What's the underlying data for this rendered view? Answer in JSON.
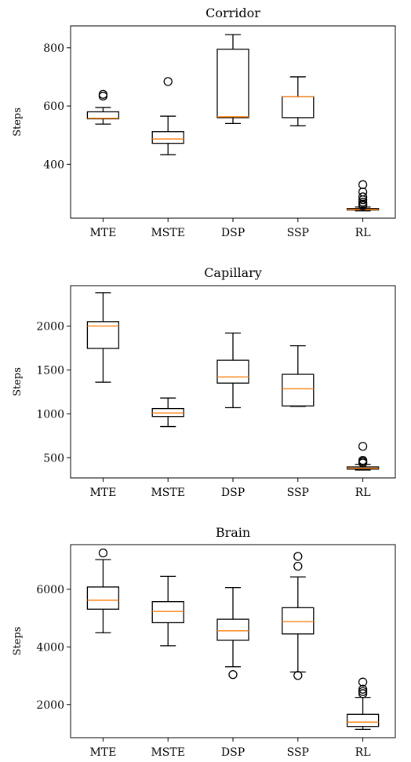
{
  "chart_data": [
    {
      "type": "boxplot",
      "title": "Corridor",
      "ylabel": "Steps",
      "xlabel": "",
      "categories": [
        "MTE",
        "MSTE",
        "DSP",
        "SSP",
        "RL"
      ],
      "ylim": [
        215,
        875
      ],
      "yticks": [
        400,
        600,
        800
      ],
      "boxes": [
        {
          "whislo": 538,
          "q1": 556,
          "med": 558,
          "q3": 580,
          "whishi": 595,
          "fliers": [
            634,
            640
          ]
        },
        {
          "whislo": 433,
          "q1": 472,
          "med": 487,
          "q3": 512,
          "whishi": 565,
          "fliers": [
            684
          ]
        },
        {
          "whislo": 540,
          "q1": 560,
          "med": 563,
          "q3": 795,
          "whishi": 845,
          "fliers": []
        },
        {
          "whislo": 532,
          "q1": 560,
          "med": 632,
          "q3": 632,
          "whishi": 700,
          "fliers": []
        },
        {
          "whislo": 240,
          "q1": 243,
          "med": 245,
          "q3": 248,
          "whishi": 253,
          "fliers": [
            258,
            263,
            270,
            278,
            288,
            305,
            330
          ]
        }
      ],
      "grid": false,
      "colors": {
        "box": "#000000",
        "median": "#ff7f0e"
      }
    },
    {
      "type": "boxplot",
      "title": "Capillary",
      "ylabel": "Steps",
      "xlabel": "",
      "categories": [
        "MTE",
        "MSTE",
        "DSP",
        "SSP",
        "RL"
      ],
      "ylim": [
        270,
        2460
      ],
      "yticks": [
        500,
        1000,
        1500,
        2000
      ],
      "boxes": [
        {
          "whislo": 1360,
          "q1": 1745,
          "med": 2000,
          "q3": 2050,
          "whishi": 2380,
          "fliers": []
        },
        {
          "whislo": 855,
          "q1": 970,
          "med": 1010,
          "q3": 1060,
          "whishi": 1180,
          "fliers": []
        },
        {
          "whislo": 1070,
          "q1": 1350,
          "med": 1420,
          "q3": 1610,
          "whishi": 1920,
          "fliers": []
        },
        {
          "whislo": 1085,
          "q1": 1090,
          "med": 1285,
          "q3": 1450,
          "whishi": 1775,
          "fliers": []
        },
        {
          "whislo": 360,
          "q1": 370,
          "med": 380,
          "q3": 395,
          "whishi": 425,
          "fliers": [
            440,
            455,
            470,
            630
          ]
        }
      ],
      "grid": false,
      "colors": {
        "box": "#000000",
        "median": "#ff7f0e"
      }
    },
    {
      "type": "boxplot",
      "title": "Brain",
      "ylabel": "Steps",
      "xlabel": "",
      "categories": [
        "MTE",
        "MSTE",
        "DSP",
        "SSP",
        "RL"
      ],
      "ylim": [
        850,
        7550
      ],
      "yticks": [
        2000,
        4000,
        6000
      ],
      "boxes": [
        {
          "whislo": 4490,
          "q1": 5310,
          "med": 5620,
          "q3": 6080,
          "whishi": 7030,
          "fliers": [
            7260
          ]
        },
        {
          "whislo": 4040,
          "q1": 4840,
          "med": 5230,
          "q3": 5570,
          "whishi": 6450,
          "fliers": []
        },
        {
          "whislo": 3310,
          "q1": 4230,
          "med": 4560,
          "q3": 4960,
          "whishi": 6060,
          "fliers": [
            3040
          ]
        },
        {
          "whislo": 3130,
          "q1": 4450,
          "med": 4880,
          "q3": 5360,
          "whishi": 6430,
          "fliers": [
            3010,
            6800,
            7140
          ]
        },
        {
          "whislo": 1140,
          "q1": 1240,
          "med": 1390,
          "q3": 1660,
          "whishi": 2250,
          "fliers": [
            2380,
            2450,
            2530,
            2780
          ]
        }
      ],
      "grid": false,
      "colors": {
        "box": "#000000",
        "median": "#ff7f0e"
      }
    }
  ]
}
